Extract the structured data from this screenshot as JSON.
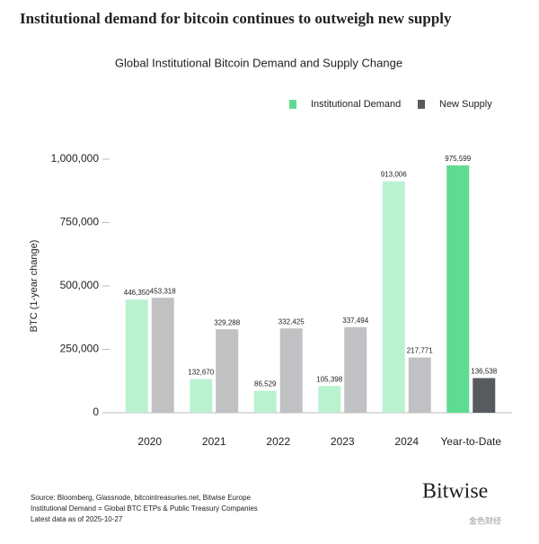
{
  "chart_data": {
    "type": "bar",
    "title": "Institutional demand for bitcoin continues to outweigh new supply",
    "subtitle": "Global Institutional Bitcoin Demand and Supply Change",
    "y_label": "BTC (1-year change)",
    "categories": [
      "2020",
      "2021",
      "2022",
      "2023",
      "2024",
      "Year-to-Date"
    ],
    "series": [
      {
        "name": "Institutional Demand",
        "color": "#5fdc92",
        "colors": [
          "#baf2d0",
          "#baf2d0",
          "#baf2d0",
          "#baf2d0",
          "#baf2d0",
          "#5fdc92"
        ],
        "values": [
          446350,
          132670,
          86529,
          105398,
          913006,
          975599
        ],
        "value_labels": [
          "446,350",
          "132,670",
          "86,529",
          "105,398",
          "913,006",
          "975,599"
        ]
      },
      {
        "name": "New Supply",
        "color": "#575b5f",
        "colors": [
          "#bfc1c3",
          "#bfc1c3",
          "#bfc1c3",
          "#bfc1c3",
          "#bfc1c3",
          "#575b5f"
        ],
        "values": [
          453318,
          329288,
          332425,
          337494,
          217771,
          136538
        ],
        "value_labels": [
          "453,318",
          "329,288",
          "332,425",
          "337,494",
          "217,771",
          "136,538"
        ]
      }
    ],
    "ylim": [
      0,
      1000000
    ],
    "yticks": [
      0,
      {
        "value": 250000,
        "label": "250,000"
      },
      {
        "value": 500000,
        "label": "500,000"
      },
      {
        "value": 750000,
        "label": "750,000"
      },
      {
        "value": 1000000,
        "label": "1,000,000"
      }
    ],
    "legend": "top-right",
    "source": [
      "Source: Bloomberg, Glassnode, bitcointreasuries.net, Bitwise Europe",
      "Institutional Demand = Global BTC ETPs & Public Treasury Companies",
      "Latest data as of 2025-10-27"
    ],
    "brand": "Bitwise",
    "watermark": "金色财经"
  }
}
